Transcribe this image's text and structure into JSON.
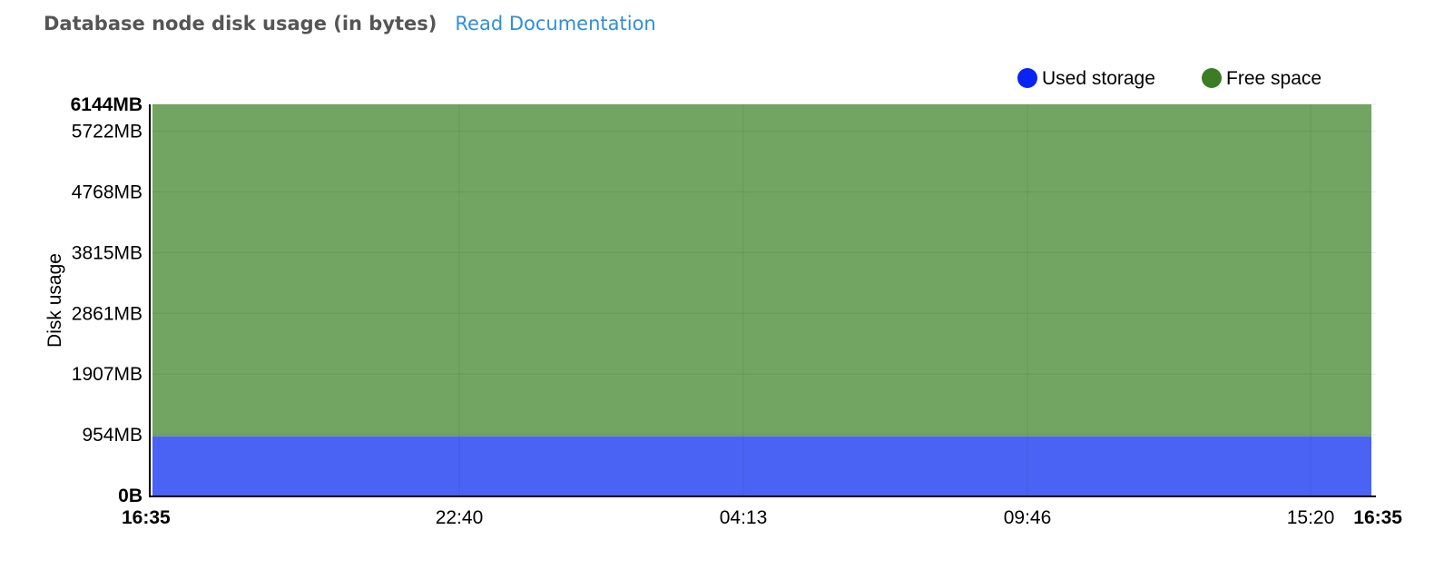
{
  "header": {
    "title": "Database node disk usage (in bytes)",
    "doc_link": "Read Documentation"
  },
  "colors": {
    "used": "#0a24f5",
    "used_fill": "#4b63f5",
    "free": "#3a7d24",
    "free_fill": "#72a562"
  },
  "chart_data": {
    "type": "area",
    "stacked": true,
    "title": "",
    "xlabel": "",
    "ylabel": "Disk usage",
    "y_unit": "MB",
    "ylim": [
      0,
      6144
    ],
    "y_ticks": [
      {
        "value": 0,
        "label": "0B",
        "bold": true
      },
      {
        "value": 954,
        "label": "954MB"
      },
      {
        "value": 1907,
        "label": "1907MB"
      },
      {
        "value": 2861,
        "label": "2861MB"
      },
      {
        "value": 3815,
        "label": "3815MB"
      },
      {
        "value": 4768,
        "label": "4768MB"
      },
      {
        "value": 5722,
        "label": "5722MB"
      },
      {
        "value": 6144,
        "label": "6144MB",
        "bold": true
      }
    ],
    "x_ticks": [
      {
        "label": "16:35",
        "bold": true
      },
      {
        "label": "22:40"
      },
      {
        "label": "04:13"
      },
      {
        "label": "09:46"
      },
      {
        "label": "15:20"
      },
      {
        "label": "16:35",
        "bold": true
      }
    ],
    "x_range": [
      "16:35",
      "16:35"
    ],
    "legend": {
      "placement": "top-right"
    },
    "grid": true,
    "series": [
      {
        "name": "Used storage",
        "color_key": "used",
        "values": [
          930,
          930,
          930,
          930,
          930,
          930
        ]
      },
      {
        "name": "Free space",
        "color_key": "free",
        "values": [
          5214,
          5214,
          5214,
          5214,
          5214,
          5214
        ]
      }
    ]
  }
}
